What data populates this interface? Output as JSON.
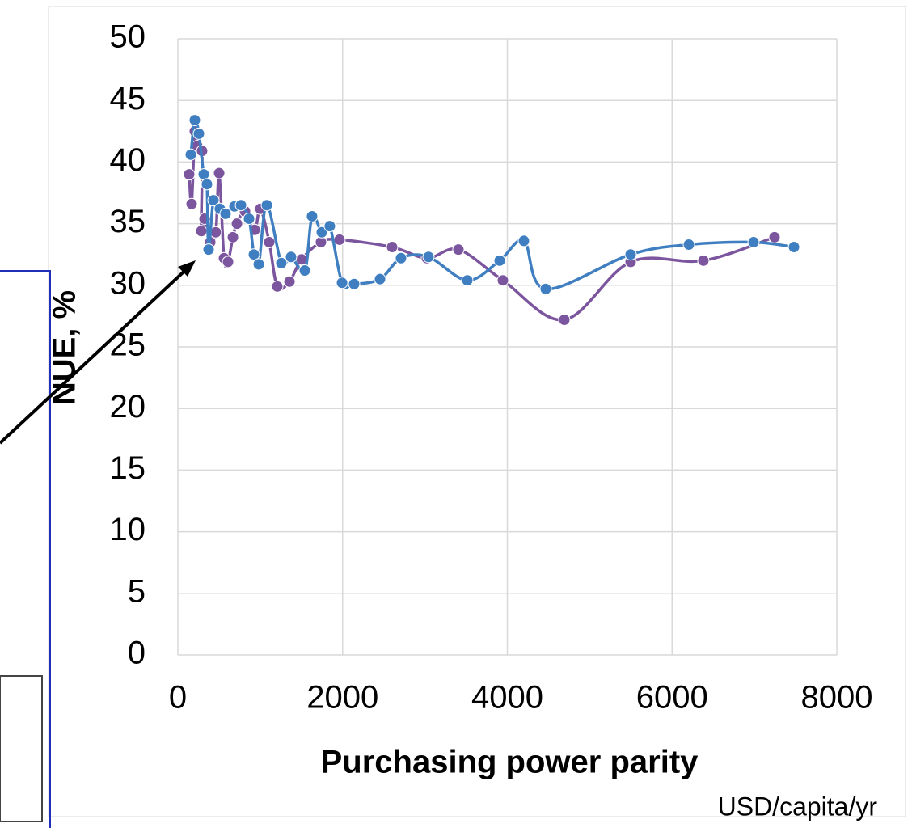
{
  "chart_data": {
    "type": "line",
    "x_label": "Purchasing power parity",
    "x_unit": "USD/capita/yr",
    "y_label": "NUE, %",
    "xlim": [
      0,
      8000
    ],
    "xticks": [
      0,
      2000,
      4000,
      6000,
      8000
    ],
    "ylim": [
      0,
      50
    ],
    "yticks": [
      0,
      5,
      10,
      15,
      20,
      25,
      30,
      35,
      40,
      45,
      50
    ],
    "grid": true,
    "series": [
      {
        "color": "#7b559e",
        "x": [
          137,
          167,
          206,
          236,
          294,
          285,
          324,
          393,
          461,
          501,
          560,
          609,
          668,
          717,
          815,
          933,
          1001,
          1109,
          1207,
          1355,
          1502,
          1737,
          1963,
          2601,
          3023,
          3406,
          3946,
          4692,
          5497,
          6380,
          7244
        ],
        "values": [
          39.0,
          36.6,
          42.5,
          41.3,
          40.9,
          34.4,
          35.4,
          33.5,
          34.3,
          39.1,
          32.2,
          31.9,
          33.9,
          35.0,
          36.0,
          34.5,
          36.2,
          33.5,
          29.9,
          30.3,
          32.1,
          33.5,
          33.7,
          33.1,
          32.2,
          32.9,
          30.4,
          27.2,
          31.9,
          32.0,
          33.9
        ]
      },
      {
        "color": "#3f7fc1",
        "x": [
          157,
          206,
          255,
          314,
          353,
          373,
          432,
          510,
          579,
          687,
          766,
          864,
          923,
          982,
          1080,
          1256,
          1374,
          1541,
          1629,
          1747,
          1845,
          1993,
          2140,
          2454,
          2709,
          3043,
          3514,
          3907,
          4201,
          4466,
          5497,
          6204,
          6989,
          7480
        ],
        "values": [
          40.6,
          43.4,
          42.3,
          39.0,
          38.2,
          32.9,
          36.9,
          36.2,
          35.8,
          36.4,
          36.5,
          35.4,
          32.5,
          31.7,
          36.5,
          31.8,
          32.3,
          31.2,
          35.6,
          34.3,
          34.8,
          30.2,
          30.1,
          30.5,
          32.2,
          32.3,
          30.4,
          32.0,
          33.6,
          29.7,
          32.5,
          33.3,
          33.5,
          33.1
        ]
      }
    ]
  }
}
